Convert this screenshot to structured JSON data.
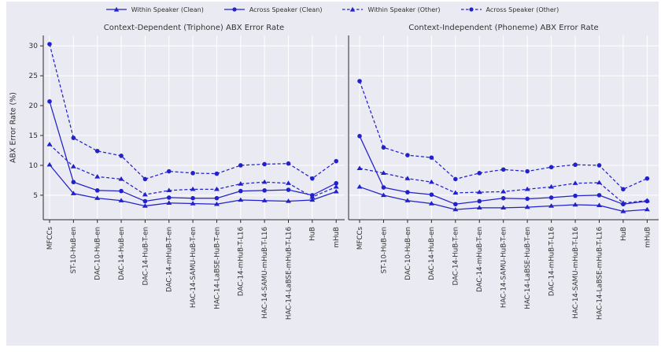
{
  "colors": {
    "series_blue": "#2222cc",
    "figure_bg": "#eaeaf2",
    "grid": "#ffffff",
    "spine": "#2b2b2b",
    "text": "#303030"
  },
  "legend": {
    "position": "top-center",
    "items": [
      {
        "label": "Within Speaker (Clean)",
        "marker": "triangle",
        "line": "solid"
      },
      {
        "label": "Across Speaker (Clean)",
        "marker": "circle",
        "line": "solid"
      },
      {
        "label": "Within Speaker (Other)",
        "marker": "triangle",
        "line": "dashed"
      },
      {
        "label": "Across Speaker (Other)",
        "marker": "circle",
        "line": "dashed"
      }
    ]
  },
  "ylabel": "ABX Error Rate (%)",
  "chart_data": [
    {
      "type": "line",
      "title": "Context-Dependent (Triphone) ABX Error Rate",
      "xlabel": "",
      "ylabel": "ABX Error Rate (%)",
      "grid": true,
      "yticks": [
        5,
        10,
        15,
        20,
        25,
        30
      ],
      "ylim": [
        0.9,
        31.75
      ],
      "categories": [
        "MFCCs",
        "ST-10-HuB-en",
        "DAC-10-HuB-en",
        "DAC-14-HuB-en",
        "DAC-14-HuB-T-en",
        "DAC-14-mHuB-T-en",
        "HAC-14-SAMU-HuB-T-en",
        "HAC-14-LaBSE-HuB-T-en",
        "DAC-14-mHuB-T-L16",
        "HAC-14-SAMU-mHuB-T-L16",
        "HAC-14-LaBSE-mHuB-T-L16",
        "HuB",
        "mHuB"
      ],
      "series": [
        {
          "name": "Within Speaker (Clean)",
          "marker": "triangle",
          "line": "solid",
          "values": [
            10.1,
            5.3,
            4.5,
            4.1,
            3.2,
            3.7,
            3.6,
            3.5,
            4.2,
            4.1,
            4.0,
            4.2,
            5.6
          ]
        },
        {
          "name": "Across Speaker (Clean)",
          "marker": "circle",
          "line": "solid",
          "values": [
            20.7,
            7.2,
            5.8,
            5.7,
            4.0,
            4.6,
            4.5,
            4.5,
            5.7,
            5.8,
            5.9,
            5.0,
            7.0
          ]
        },
        {
          "name": "Within Speaker (Other)",
          "marker": "triangle",
          "line": "dashed",
          "values": [
            13.5,
            9.8,
            8.1,
            7.7,
            5.1,
            5.8,
            6.0,
            6.0,
            6.9,
            7.2,
            7.0,
            4.7,
            6.4
          ]
        },
        {
          "name": "Across Speaker (Other)",
          "marker": "circle",
          "line": "dashed",
          "values": [
            30.3,
            14.6,
            12.4,
            11.6,
            7.7,
            9.0,
            8.7,
            8.6,
            10.0,
            10.2,
            10.3,
            7.8,
            10.7
          ]
        }
      ]
    },
    {
      "type": "line",
      "title": "Context-Independent (Phoneme) ABX Error Rate",
      "xlabel": "",
      "ylabel": "",
      "grid": true,
      "yticks": [
        5,
        10,
        15,
        20,
        25,
        30
      ],
      "ylim": [
        0.9,
        31.75
      ],
      "categories": [
        "MFCCs",
        "ST-10-HuB-en",
        "DAC-10-HuB-en",
        "DAC-14-HuB-en",
        "DAC-14-HuB-T-en",
        "DAC-14-mHuB-T-en",
        "HAC-14-SAMU-HuB-T-en",
        "HAC-14-LaBSE-HuB-T-en",
        "DAC-14-mHuB-T-L16",
        "HAC-14-SAMU-mHuB-T-L16",
        "HAC-14-LaBSE-mHuB-T-L16",
        "HuB",
        "mHuB"
      ],
      "series": [
        {
          "name": "Within Speaker (Clean)",
          "marker": "triangle",
          "line": "solid",
          "values": [
            6.4,
            5.0,
            4.1,
            3.6,
            2.6,
            2.9,
            2.9,
            3.0,
            3.2,
            3.4,
            3.3,
            2.3,
            2.6
          ]
        },
        {
          "name": "Across Speaker (Clean)",
          "marker": "circle",
          "line": "solid",
          "values": [
            14.9,
            6.3,
            5.5,
            5.1,
            3.5,
            4.0,
            4.5,
            4.4,
            4.6,
            4.9,
            5.0,
            3.5,
            4.0
          ]
        },
        {
          "name": "Within Speaker (Other)",
          "marker": "triangle",
          "line": "dashed",
          "values": [
            9.5,
            8.7,
            7.8,
            7.2,
            5.4,
            5.5,
            5.6,
            6.0,
            6.4,
            7.0,
            7.1,
            3.7,
            4.1
          ]
        },
        {
          "name": "Across Speaker (Other)",
          "marker": "circle",
          "line": "dashed",
          "values": [
            24.1,
            13.0,
            11.7,
            11.3,
            7.7,
            8.7,
            9.3,
            9.0,
            9.7,
            10.1,
            10.0,
            6.0,
            7.8
          ]
        }
      ]
    }
  ]
}
